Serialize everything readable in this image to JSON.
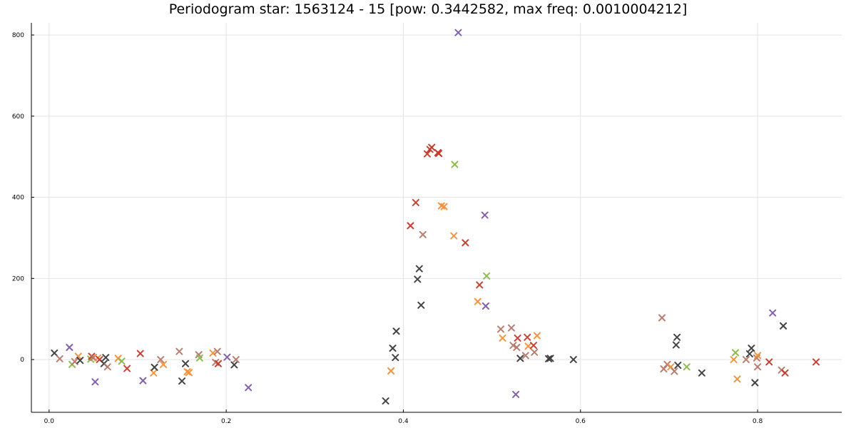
{
  "chart_data": {
    "type": "scatter",
    "title": "Periodogram star: 1563124 - 15 [pow: 0.3442582, max freq: 0.0010004212]",
    "xlabel": "",
    "ylabel": "",
    "xlim": [
      -0.02,
      0.895
    ],
    "ylim": [
      -130,
      830
    ],
    "grid": true,
    "legend": "none",
    "x_ticks": [
      0.0,
      0.2,
      0.4,
      0.6,
      0.8
    ],
    "x_tick_labels": [
      "0.0",
      "0.2",
      "0.4",
      "0.6",
      "0.8"
    ],
    "y_ticks": [
      0,
      200,
      400,
      600,
      800
    ],
    "y_tick_labels": [
      "0",
      "200",
      "400",
      "600",
      "800"
    ],
    "marker": "x",
    "colors": {
      "purple": "#7c5aa6",
      "tan": "#b5786a",
      "green": "#8ab84a",
      "red": "#c0392b",
      "orange": "#f0913a",
      "dark": "#3a3a3a"
    },
    "points": [
      [
        0.006,
        16,
        "dark"
      ],
      [
        0.012,
        2,
        "tan"
      ],
      [
        0.023,
        30,
        "purple"
      ],
      [
        0.026,
        -12,
        "green"
      ],
      [
        0.029,
        -5,
        "tan"
      ],
      [
        0.033,
        8,
        "orange"
      ],
      [
        0.035,
        -2,
        "dark"
      ],
      [
        0.047,
        1,
        "green"
      ],
      [
        0.048,
        8,
        "red"
      ],
      [
        0.05,
        5,
        "tan"
      ],
      [
        0.052,
        -55,
        "purple"
      ],
      [
        0.055,
        4,
        "orange"
      ],
      [
        0.057,
        0,
        "red"
      ],
      [
        0.062,
        -10,
        "dark"
      ],
      [
        0.064,
        5,
        "dark"
      ],
      [
        0.066,
        -18,
        "tan"
      ],
      [
        0.078,
        3,
        "orange"
      ],
      [
        0.082,
        -4,
        "green"
      ],
      [
        0.088,
        -22,
        "red"
      ],
      [
        0.103,
        15,
        "red"
      ],
      [
        0.106,
        -52,
        "purple"
      ],
      [
        0.118,
        -33,
        "orange"
      ],
      [
        0.119,
        -19,
        "dark"
      ],
      [
        0.126,
        0,
        "tan"
      ],
      [
        0.129,
        -12,
        "orange"
      ],
      [
        0.147,
        20,
        "tan"
      ],
      [
        0.15,
        -53,
        "dark"
      ],
      [
        0.154,
        -10,
        "dark"
      ],
      [
        0.156,
        -30,
        "orange"
      ],
      [
        0.158,
        -32,
        "orange"
      ],
      [
        0.169,
        12,
        "tan"
      ],
      [
        0.17,
        4,
        "green"
      ],
      [
        0.185,
        16,
        "orange"
      ],
      [
        0.188,
        -7,
        "tan"
      ],
      [
        0.19,
        20,
        "tan"
      ],
      [
        0.191,
        -10,
        "red"
      ],
      [
        0.201,
        6,
        "purple"
      ],
      [
        0.209,
        -13,
        "dark"
      ],
      [
        0.211,
        0,
        "tan"
      ],
      [
        0.225,
        -69,
        "purple"
      ],
      [
        0.38,
        -102,
        "dark"
      ],
      [
        0.386,
        -28,
        "orange"
      ],
      [
        0.388,
        28,
        "dark"
      ],
      [
        0.391,
        5,
        "dark"
      ],
      [
        0.392,
        70,
        "dark"
      ],
      [
        0.408,
        330,
        "red"
      ],
      [
        0.414,
        387,
        "red"
      ],
      [
        0.416,
        198,
        "dark"
      ],
      [
        0.418,
        224,
        "dark"
      ],
      [
        0.42,
        134,
        "dark"
      ],
      [
        0.422,
        308,
        "tan"
      ],
      [
        0.427,
        507,
        "red"
      ],
      [
        0.43,
        518,
        "red"
      ],
      [
        0.432,
        523,
        "red"
      ],
      [
        0.439,
        510,
        "red"
      ],
      [
        0.44,
        508,
        "red"
      ],
      [
        0.443,
        379,
        "orange"
      ],
      [
        0.446,
        377,
        "orange"
      ],
      [
        0.457,
        305,
        "orange"
      ],
      [
        0.458,
        481,
        "green"
      ],
      [
        0.462,
        806,
        "purple"
      ],
      [
        0.47,
        288,
        "red"
      ],
      [
        0.484,
        143,
        "orange"
      ],
      [
        0.486,
        184,
        "red"
      ],
      [
        0.492,
        356,
        "purple"
      ],
      [
        0.493,
        132,
        "purple"
      ],
      [
        0.494,
        206,
        "green"
      ],
      [
        0.51,
        75,
        "tan"
      ],
      [
        0.512,
        53,
        "orange"
      ],
      [
        0.522,
        78,
        "tan"
      ],
      [
        0.524,
        35,
        "tan"
      ],
      [
        0.527,
        -86,
        "purple"
      ],
      [
        0.528,
        30,
        "tan"
      ],
      [
        0.529,
        53,
        "red"
      ],
      [
        0.532,
        3,
        "dark"
      ],
      [
        0.538,
        10,
        "tan"
      ],
      [
        0.54,
        55,
        "red"
      ],
      [
        0.541,
        33,
        "orange"
      ],
      [
        0.547,
        35,
        "red"
      ],
      [
        0.548,
        18,
        "tan"
      ],
      [
        0.551,
        59,
        "orange"
      ],
      [
        0.564,
        2,
        "dark"
      ],
      [
        0.566,
        3,
        "dark"
      ],
      [
        0.592,
        0,
        "dark"
      ],
      [
        0.692,
        103,
        "tan"
      ],
      [
        0.694,
        -23,
        "tan"
      ],
      [
        0.698,
        -12,
        "tan"
      ],
      [
        0.702,
        -18,
        "orange"
      ],
      [
        0.706,
        -29,
        "tan"
      ],
      [
        0.708,
        36,
        "dark"
      ],
      [
        0.709,
        55,
        "dark"
      ],
      [
        0.71,
        -14,
        "dark"
      ],
      [
        0.72,
        -18,
        "green"
      ],
      [
        0.737,
        -33,
        "dark"
      ],
      [
        0.773,
        0,
        "orange"
      ],
      [
        0.775,
        17,
        "green"
      ],
      [
        0.777,
        -48,
        "orange"
      ],
      [
        0.787,
        0,
        "tan"
      ],
      [
        0.791,
        14,
        "dark"
      ],
      [
        0.793,
        28,
        "dark"
      ],
      [
        0.797,
        -57,
        "dark"
      ],
      [
        0.799,
        4,
        "tan"
      ],
      [
        0.8,
        10,
        "orange"
      ],
      [
        0.8,
        -18,
        "tan"
      ],
      [
        0.813,
        -6,
        "red"
      ],
      [
        0.817,
        115,
        "purple"
      ],
      [
        0.827,
        -26,
        "tan"
      ],
      [
        0.829,
        83,
        "dark"
      ],
      [
        0.831,
        -33,
        "red"
      ],
      [
        0.866,
        -6,
        "red"
      ]
    ]
  }
}
